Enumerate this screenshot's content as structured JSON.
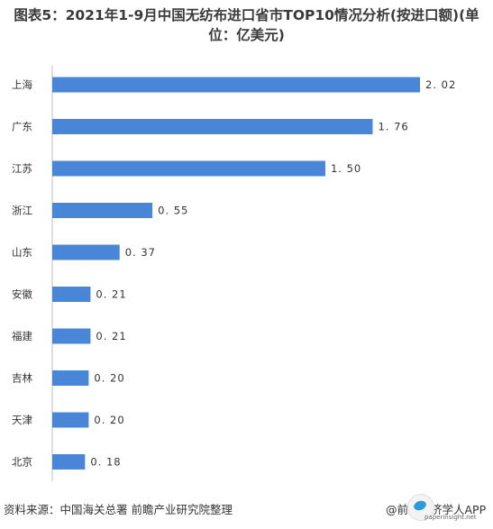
{
  "chart_data": {
    "type": "bar",
    "orientation": "horizontal",
    "title": "图表5：2021年1-9月中国无纺布进口省市TOP10情况分析(按进口额)(单位：亿美元)",
    "title_lines": [
      "图表5：2021年1-9月中国无纺布进口省市TOP10情况分析(按进口额)(单",
      "位：亿美元)"
    ],
    "categories": [
      "上海",
      "广东",
      "江苏",
      "浙江",
      "山东",
      "安徽",
      "福建",
      "吉林",
      "天津",
      "北京"
    ],
    "values": [
      2.02,
      1.76,
      1.5,
      0.55,
      0.37,
      0.21,
      0.21,
      0.2,
      0.2,
      0.18
    ],
    "value_labels": [
      "2. 02",
      "1. 76",
      "1. 50",
      "0. 55",
      "0. 37",
      "0. 21",
      "0. 21",
      "0. 20",
      "0. 20",
      "0. 18"
    ],
    "bar_color": "#4a86d8",
    "xlim": [
      0,
      2.02
    ],
    "grid": false,
    "legend": "none"
  },
  "footer": {
    "source": "资料来源：中国海关总署 前瞻产业研究院整理",
    "brand": "@前瞻经济学人APP",
    "site": "paperinsight.net"
  }
}
